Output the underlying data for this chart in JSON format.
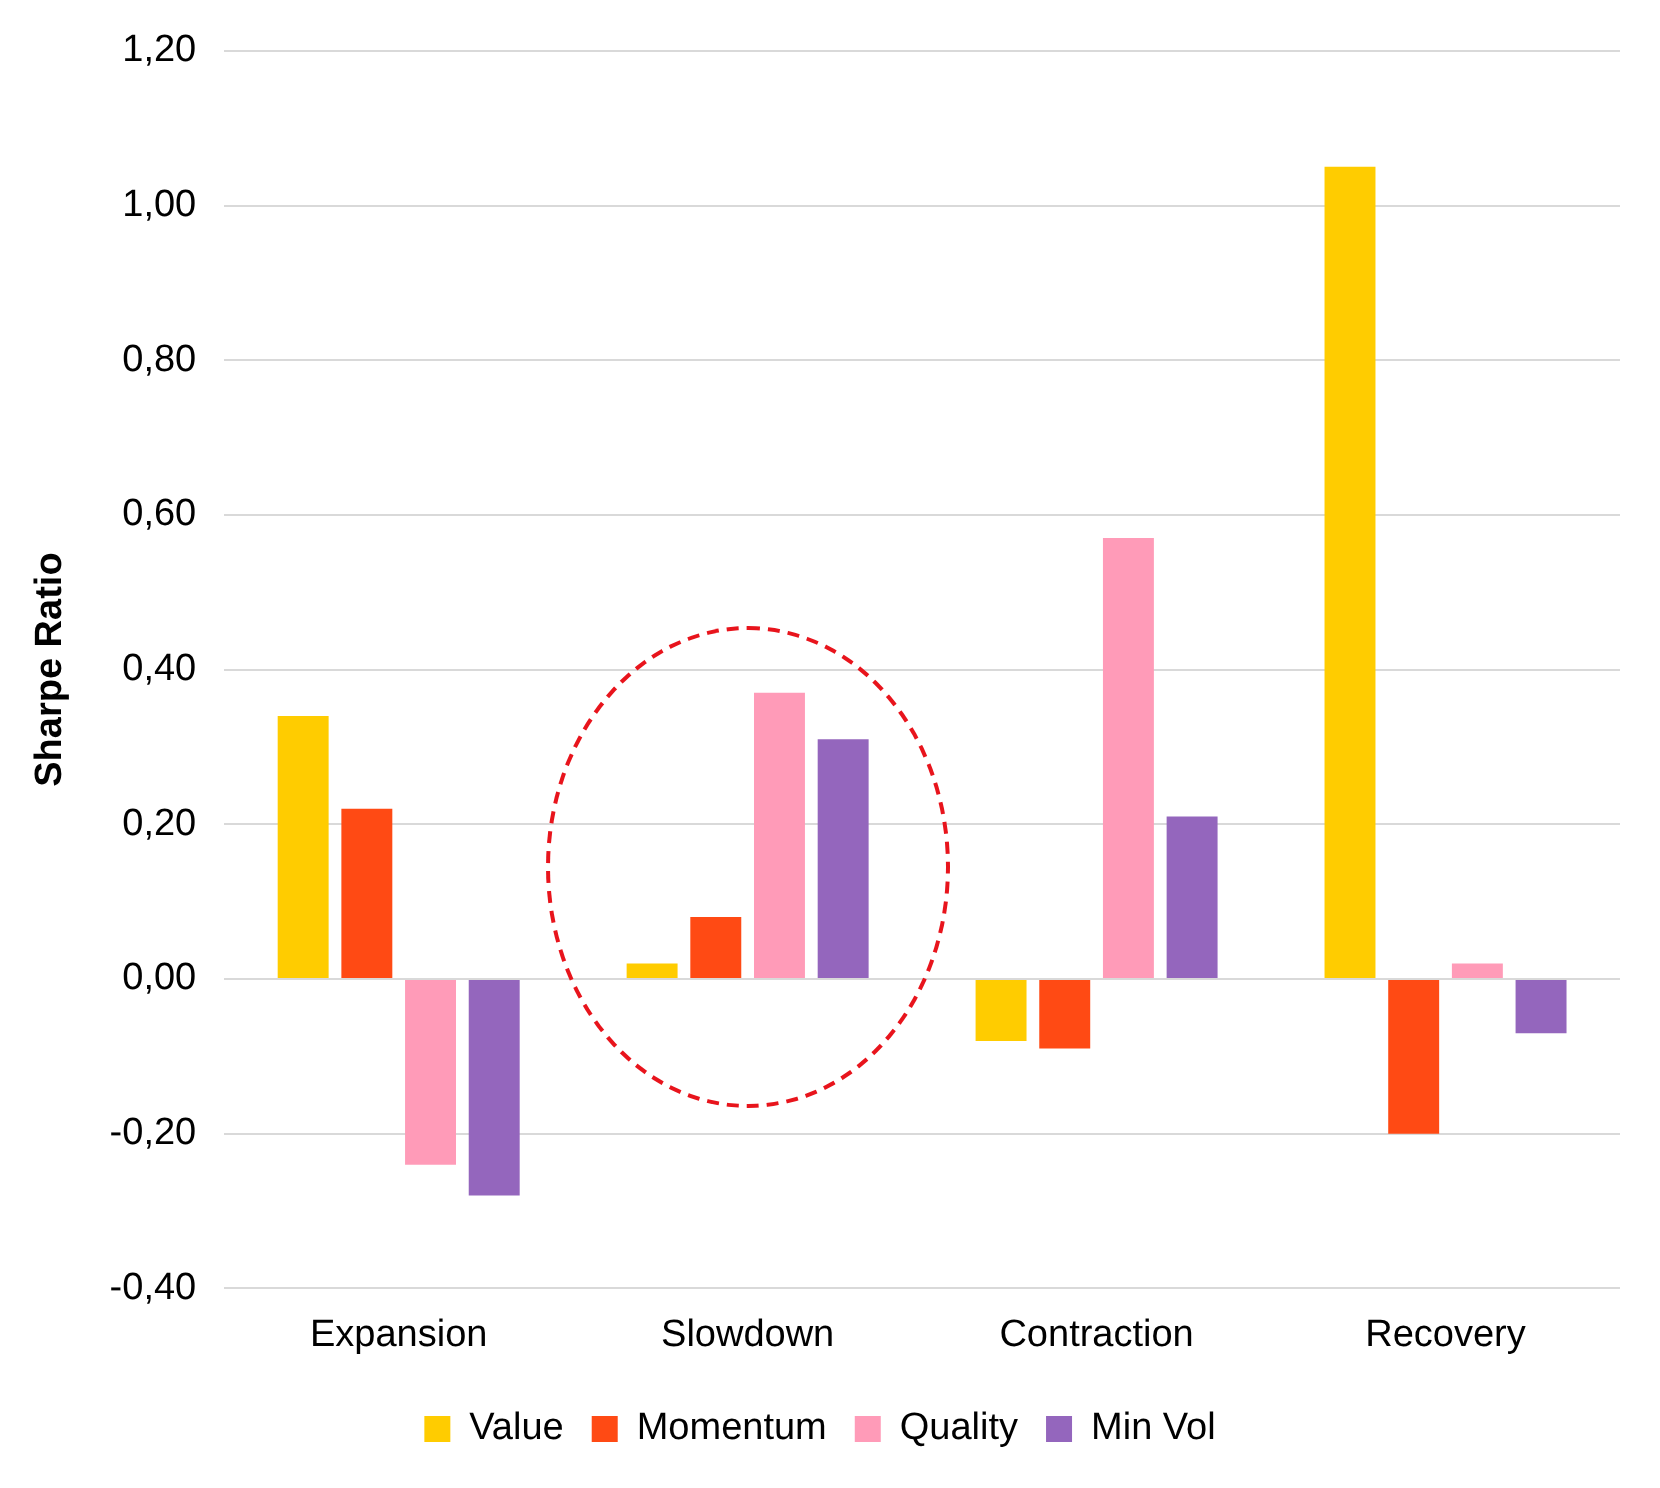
{
  "chart_data": {
    "type": "bar",
    "ylabel": "Sharpe Ratio",
    "categories": [
      "Expansion",
      "Slowdown",
      "Contraction",
      "Recovery"
    ],
    "series": [
      {
        "name": "Value",
        "color": "#ffcc00",
        "values": [
          0.34,
          0.02,
          -0.08,
          1.05
        ]
      },
      {
        "name": "Momentum",
        "color": "#ff4a14",
        "values": [
          0.22,
          0.08,
          -0.09,
          -0.2
        ]
      },
      {
        "name": "Quality",
        "color": "#ff9bb8",
        "values": [
          -0.24,
          0.37,
          0.57,
          0.02
        ]
      },
      {
        "name": "Min Vol",
        "color": "#9466bd",
        "values": [
          -0.28,
          0.31,
          0.21,
          -0.07
        ]
      }
    ],
    "ylim": [
      -0.4,
      1.2
    ],
    "yticks": [
      {
        "value": -0.4,
        "label": "-0,40"
      },
      {
        "value": -0.2,
        "label": "-0,20"
      },
      {
        "value": 0,
        "label": "0,00"
      },
      {
        "value": 0.2,
        "label": "0,20"
      },
      {
        "value": 0.4,
        "label": "0,40"
      },
      {
        "value": 0.6,
        "label": "0,60"
      },
      {
        "value": 0.8,
        "label": "0,80"
      },
      {
        "value": 1,
        "label": "1,00"
      },
      {
        "value": 1.2,
        "label": "1,20"
      }
    ],
    "grid": "y",
    "legend": "bottom"
  }
}
